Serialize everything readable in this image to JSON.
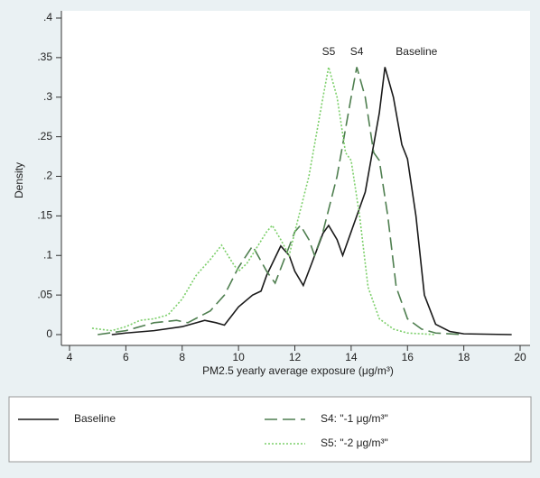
{
  "chart_data": {
    "type": "line",
    "xlabel": "PM2.5 yearly average exposure (μg/m³)",
    "ylabel": "Density",
    "xlim": [
      4,
      20
    ],
    "xticks": [
      4,
      6,
      8,
      10,
      12,
      14,
      16,
      18,
      20
    ],
    "ylim": [
      0,
      0.4
    ],
    "yticks": [
      0,
      {
        "value": 0.05,
        "label": ".05"
      },
      {
        "value": 0.1,
        "label": ".1"
      },
      {
        "value": 0.15,
        "label": ".15"
      },
      {
        "value": 0.2,
        "label": ".2"
      },
      {
        "value": 0.25,
        "label": ".25"
      },
      {
        "value": 0.3,
        "label": ".3"
      },
      {
        "value": 0.35,
        "label": ".35"
      },
      {
        "value": 0.4,
        "label": ".4"
      }
    ],
    "series": [
      {
        "name": "Baseline",
        "peak_label": "Baseline",
        "color": "#1a1a1a",
        "dash": "none",
        "x": [
          5.5,
          6,
          7,
          8,
          8.5,
          8.8,
          9.2,
          9.5,
          10,
          10.5,
          10.8,
          11,
          11.5,
          11.8,
          12,
          12.3,
          12.6,
          13,
          13.2,
          13.5,
          13.7,
          14,
          14.5,
          15,
          15.2,
          15.5,
          15.8,
          16,
          16.3,
          16.6,
          17,
          17.5,
          18,
          19.7
        ],
        "values": [
          0,
          0.002,
          0.005,
          0.01,
          0.015,
          0.018,
          0.015,
          0.012,
          0.035,
          0.05,
          0.055,
          0.075,
          0.112,
          0.1,
          0.08,
          0.062,
          0.09,
          0.128,
          0.138,
          0.12,
          0.1,
          0.13,
          0.18,
          0.28,
          0.338,
          0.3,
          0.24,
          0.222,
          0.15,
          0.05,
          0.013,
          0.004,
          0.001,
          0
        ]
      },
      {
        "name": "S4: \"-1 μg/m³\"",
        "peak_label": "S4",
        "color": "#4f7f50",
        "dash": "14 6",
        "x": [
          5,
          6,
          7,
          7.8,
          8.2,
          9,
          9.5,
          10,
          10.5,
          11,
          11.3,
          12,
          12.2,
          12.5,
          12.7,
          13,
          13.5,
          14,
          14.2,
          14.5,
          14.8,
          15,
          15.3,
          15.6,
          16,
          16.5,
          17,
          18
        ],
        "values": [
          0,
          0.005,
          0.015,
          0.018,
          0.015,
          0.03,
          0.05,
          0.085,
          0.112,
          0.08,
          0.065,
          0.13,
          0.138,
          0.12,
          0.1,
          0.13,
          0.2,
          0.3,
          0.338,
          0.3,
          0.23,
          0.22,
          0.15,
          0.06,
          0.02,
          0.007,
          0.002,
          0
        ]
      },
      {
        "name": "S5: \"-2 μg/m³\"",
        "peak_label": "S5",
        "color": "#7ccf6a",
        "dash": "2 2",
        "x": [
          4.8,
          5.5,
          6,
          6.5,
          7,
          7.5,
          8,
          8.5,
          9,
          9.4,
          9.8,
          10,
          10.3,
          11,
          11.2,
          11.5,
          11.8,
          12,
          12.5,
          13,
          13.2,
          13.5,
          13.8,
          14,
          14.3,
          14.6,
          15,
          15.5,
          16,
          17
        ],
        "values": [
          0.008,
          0.005,
          0.01,
          0.018,
          0.02,
          0.025,
          0.045,
          0.075,
          0.095,
          0.113,
          0.09,
          0.08,
          0.09,
          0.13,
          0.138,
          0.12,
          0.1,
          0.13,
          0.2,
          0.3,
          0.338,
          0.3,
          0.23,
          0.22,
          0.15,
          0.06,
          0.02,
          0.007,
          0.002,
          0
        ]
      }
    ]
  }
}
